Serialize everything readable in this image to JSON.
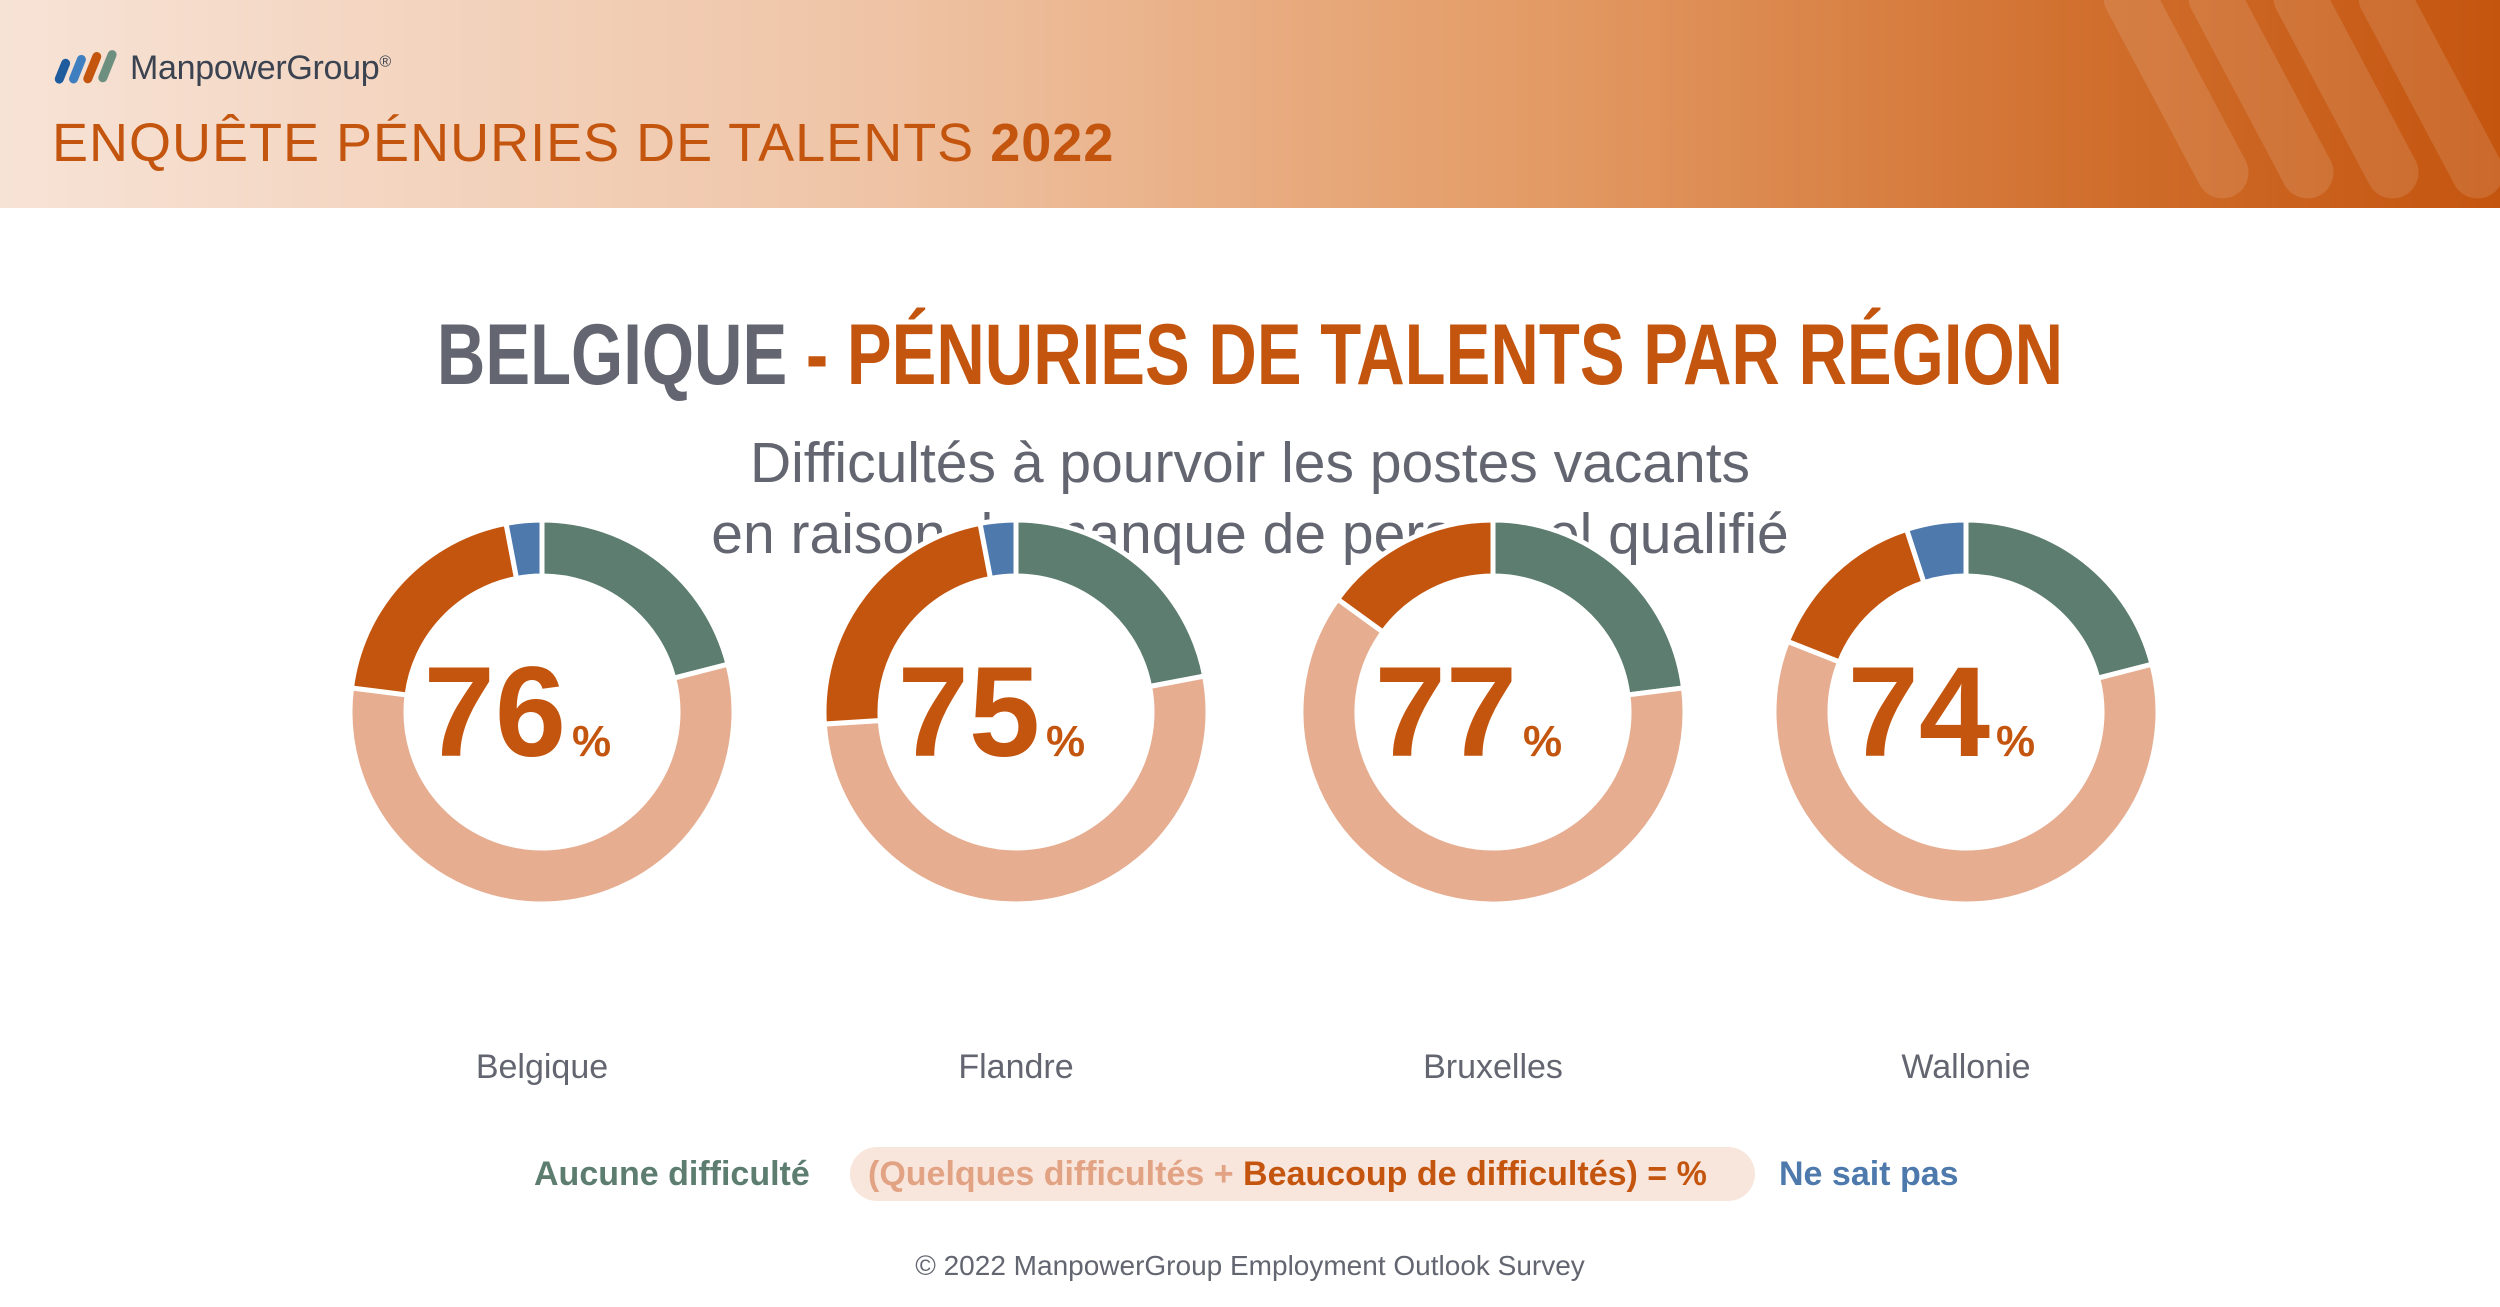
{
  "header": {
    "brand": "ManpowerGroup",
    "brand_mark": "®",
    "title_prefix": "ENQUÊTE PÉNURIES DE TALENTS",
    "title_year": "2022"
  },
  "title": {
    "part1": "BELGIQUE",
    "separator": " - ",
    "part2": "PÉNURIES DE TALENTS PAR RÉGION"
  },
  "subtitle": {
    "line1": "Difficultés à pourvoir les postes vacants",
    "line2": "en raison du manque de personnel qualifié"
  },
  "colors": {
    "aucune": "#5c7d70",
    "quelques": "#e6ad90",
    "beaucoup": "#c4550f",
    "ne_sait_pas": "#4e79ad",
    "accent": "#c4550f",
    "grey_text": "#636670"
  },
  "chart_data": {
    "type": "pie",
    "variant": "donut",
    "categories": [
      "Belgique",
      "Flandre",
      "Bruxelles",
      "Wallonie"
    ],
    "series": [
      {
        "name": "Aucune difficulté",
        "values": [
          21,
          22,
          23,
          21
        ]
      },
      {
        "name": "Quelques difficultés",
        "values": [
          56,
          52,
          62,
          60
        ]
      },
      {
        "name": "Beaucoup de difficultés",
        "values": [
          20,
          23,
          15,
          14
        ]
      },
      {
        "name": "Ne sait pas",
        "values": [
          3,
          3,
          0,
          5
        ]
      }
    ],
    "totals": [
      "76",
      "75",
      "77",
      "74"
    ],
    "total_unit": "%"
  },
  "legend": {
    "aucune": "Aucune difficulté",
    "open": "(Quelques difficultés + ",
    "beaucoup": "Beaucoup de difficultés",
    "close": ") = %",
    "ne_sait_pas": "Ne sait pas"
  },
  "footer": "© 2022 ManpowerGroup Employment Outlook Survey"
}
